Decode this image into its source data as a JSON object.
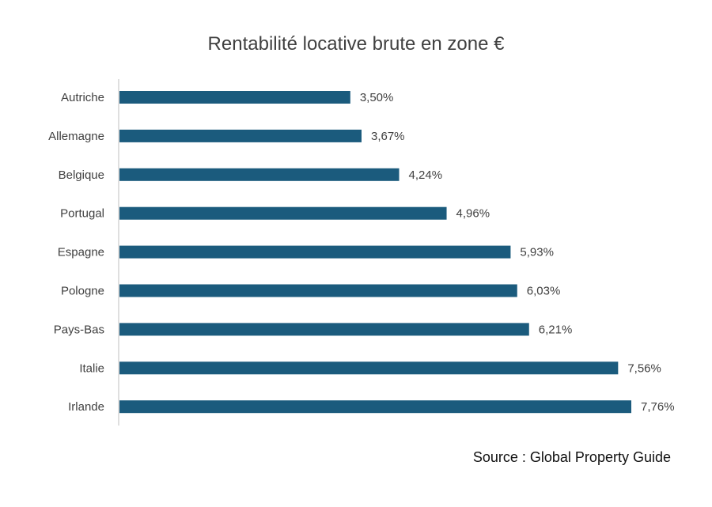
{
  "chart_data": {
    "type": "bar",
    "orientation": "horizontal",
    "title": "Rentabilité locative brute en zone €",
    "categories": [
      "Autriche",
      "Allemagne",
      "Belgique",
      "Portugal",
      "Espagne",
      "Pologne",
      "Pays-Bas",
      "Italie",
      "Irlande"
    ],
    "values": [
      3.5,
      3.67,
      4.24,
      4.96,
      5.93,
      6.03,
      6.21,
      7.56,
      7.76
    ],
    "data_labels": [
      "3,50%",
      "3,67%",
      "4,24%",
      "4,96%",
      "5,93%",
      "6,03%",
      "6,21%",
      "7,56%",
      "7,76%"
    ],
    "xlabel": "",
    "ylabel": "",
    "xlim": [
      0,
      7.76
    ],
    "grid": false,
    "bar_color": "#1b5b7d"
  },
  "source": "Source : Global Property Guide"
}
